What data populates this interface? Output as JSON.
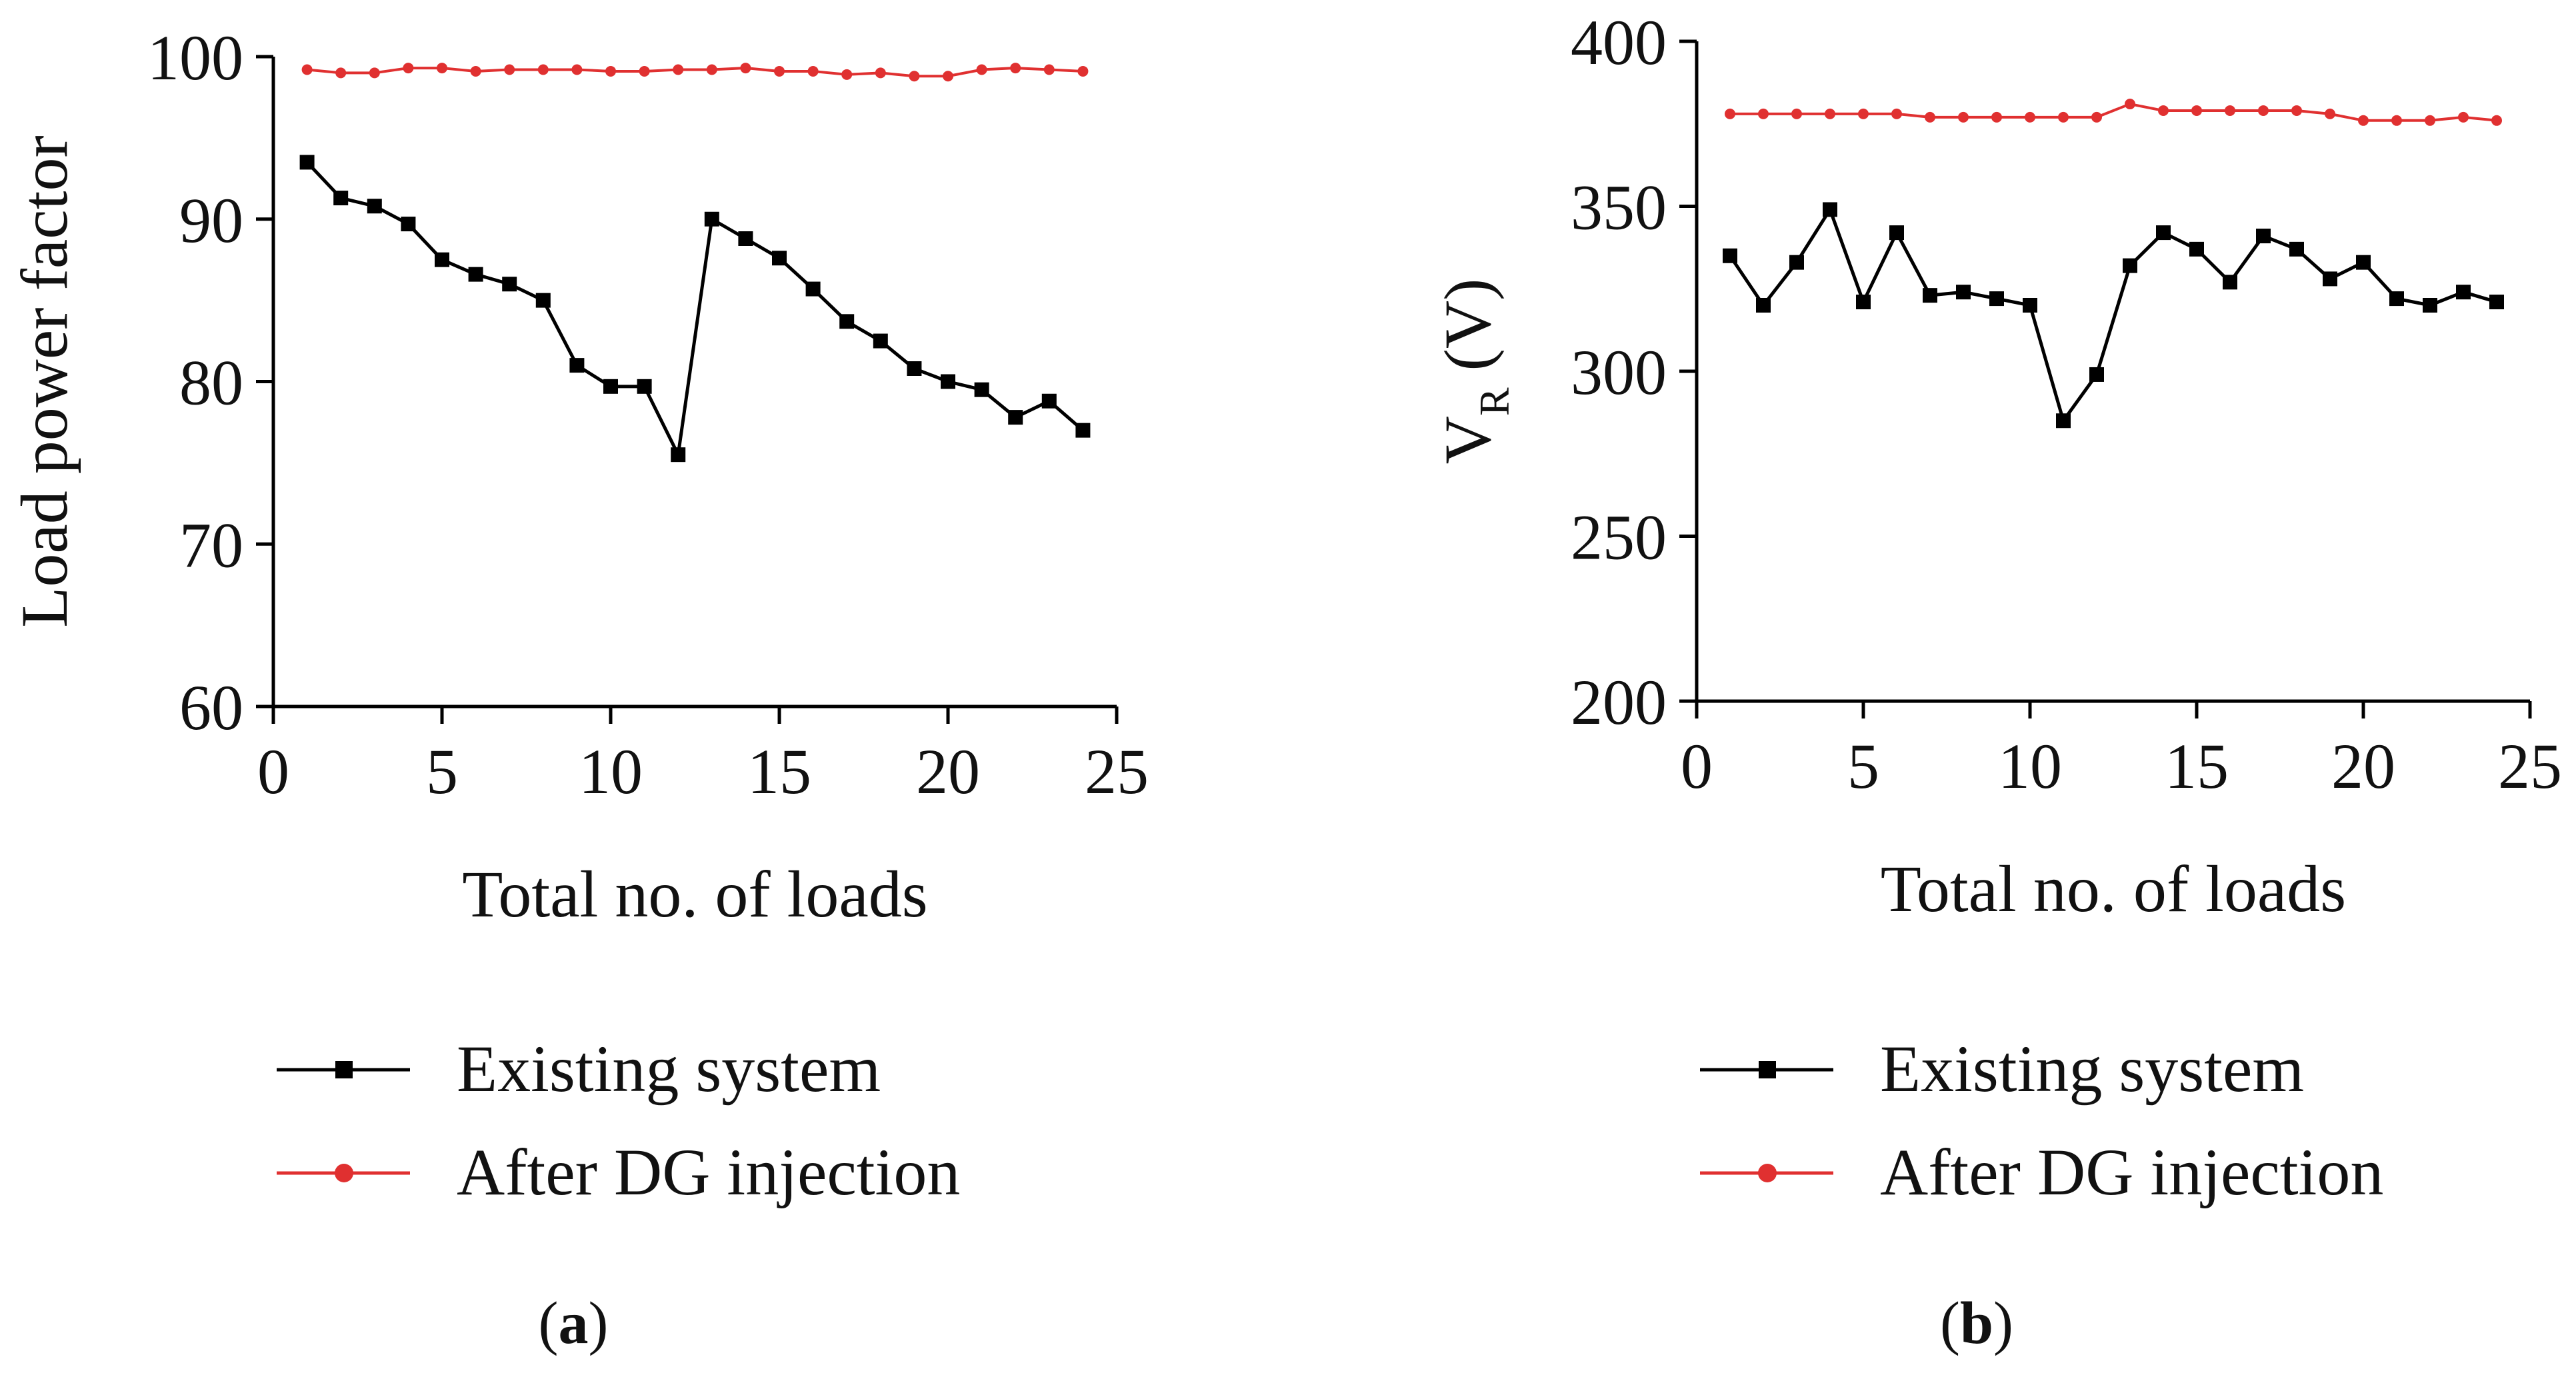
{
  "colors": {
    "existing": "#000000",
    "dg": "#e03030",
    "axis": "#000000"
  },
  "chart_data": [
    {
      "type": "line",
      "panel_label": "a",
      "xlabel": "Total no. of loads",
      "ylabel": "Load power factor",
      "xlim": [
        0,
        25
      ],
      "ylim": [
        60,
        100
      ],
      "xticks": [
        0,
        5,
        10,
        15,
        20,
        25
      ],
      "yticks": [
        60,
        70,
        80,
        90,
        100
      ],
      "grid": false,
      "legend_position": "below",
      "x": [
        1,
        2,
        3,
        4,
        5,
        6,
        7,
        8,
        9,
        10,
        11,
        12,
        13,
        14,
        15,
        16,
        17,
        18,
        19,
        20,
        21,
        22,
        23,
        24
      ],
      "series": [
        {
          "name": "Existing system",
          "marker": "square",
          "values": [
            93.5,
            91.3,
            90.8,
            89.7,
            87.5,
            86.6,
            86.0,
            85.0,
            81.0,
            79.7,
            79.7,
            75.5,
            90.0,
            88.8,
            87.6,
            85.7,
            83.7,
            82.5,
            80.8,
            80.0,
            79.5,
            77.8,
            78.8,
            77.0
          ]
        },
        {
          "name": "After DG injection",
          "marker": "circle",
          "values": [
            99.2,
            99.0,
            99.0,
            99.3,
            99.3,
            99.1,
            99.2,
            99.2,
            99.2,
            99.1,
            99.1,
            99.2,
            99.2,
            99.3,
            99.1,
            99.1,
            98.9,
            99.0,
            98.8,
            98.8,
            99.2,
            99.3,
            99.2,
            99.1
          ]
        }
      ]
    },
    {
      "type": "line",
      "panel_label": "b",
      "xlabel": "Total no. of loads",
      "ylabel": "V",
      "ylabel_sub": "R",
      "ylabel_unit": "(V)",
      "xlim": [
        0,
        25
      ],
      "ylim": [
        200,
        400
      ],
      "xticks": [
        0,
        5,
        10,
        15,
        20,
        25
      ],
      "yticks": [
        200,
        250,
        300,
        350,
        400
      ],
      "grid": false,
      "legend_position": "below",
      "x": [
        1,
        2,
        3,
        4,
        5,
        6,
        7,
        8,
        9,
        10,
        11,
        12,
        13,
        14,
        15,
        16,
        17,
        18,
        19,
        20,
        21,
        22,
        23,
        24
      ],
      "series": [
        {
          "name": "Existing system",
          "marker": "square",
          "values": [
            335,
            320,
            333,
            349,
            321,
            342,
            323,
            324,
            322,
            320,
            285,
            299,
            332,
            342,
            337,
            327,
            341,
            337,
            328,
            333,
            322,
            320,
            324,
            321
          ]
        },
        {
          "name": "After DG injection",
          "marker": "circle",
          "values": [
            378,
            378,
            378,
            378,
            378,
            378,
            377,
            377,
            377,
            377,
            377,
            377,
            381,
            379,
            379,
            379,
            379,
            379,
            378,
            376,
            376,
            376,
            377,
            376
          ]
        }
      ]
    }
  ]
}
